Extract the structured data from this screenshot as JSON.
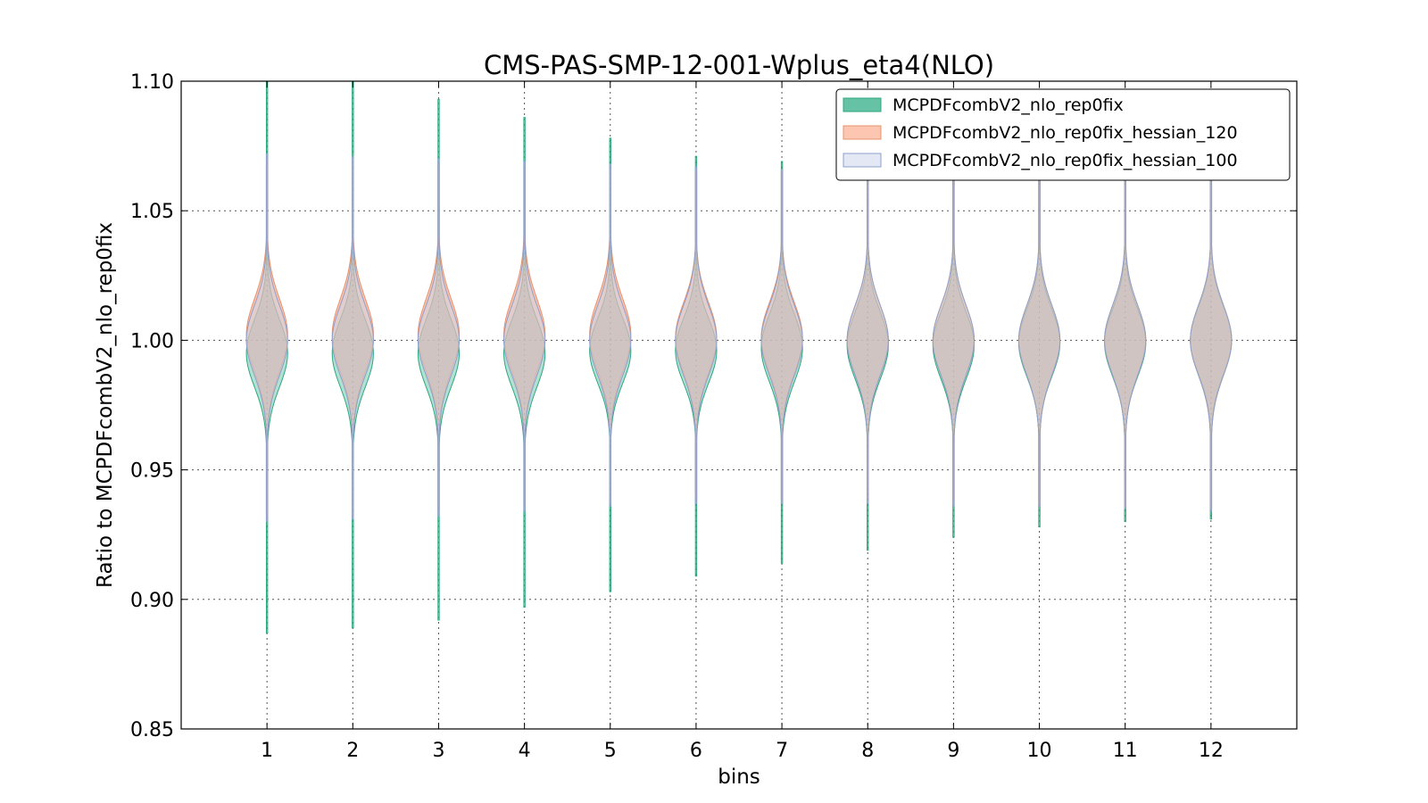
{
  "chart_data": {
    "type": "violin",
    "title": "CMS-PAS-SMP-12-001-Wplus_eta4(NLO)",
    "xlabel": "bins",
    "ylabel": "Ratio to MCPDFcombV2_nlo_rep0fix",
    "ylim": [
      0.85,
      1.1
    ],
    "xlim": [
      0,
      13.0
    ],
    "categories": [
      "1",
      "2",
      "3",
      "4",
      "5",
      "6",
      "7",
      "8",
      "9",
      "10",
      "11",
      "12"
    ],
    "yticks": [
      "0.85",
      "0.90",
      "0.95",
      "1.00",
      "1.05",
      "1.10"
    ],
    "grid": true,
    "legend_position": "top-right",
    "series": [
      {
        "name": "MCPDFcombV2_nlo_rep0fix",
        "fill": "#66c2a5",
        "stroke": "#2ca87f",
        "center": [
          0.995,
          0.995,
          0.995,
          0.995,
          0.996,
          0.996,
          0.997,
          0.998,
          0.998,
          0.999,
          0.999,
          1.0
        ],
        "sd": [
          0.013,
          0.013,
          0.013,
          0.013,
          0.0125,
          0.0125,
          0.013,
          0.013,
          0.013,
          0.013,
          0.013,
          0.013
        ],
        "min": [
          0.887,
          0.889,
          0.892,
          0.897,
          0.903,
          0.909,
          0.914,
          0.919,
          0.924,
          0.928,
          0.93,
          0.931
        ],
        "max": [
          1.1,
          1.1,
          1.093,
          1.086,
          1.078,
          1.071,
          1.069,
          1.067,
          1.066,
          1.065,
          1.063,
          1.062
        ]
      },
      {
        "name": "MCPDFcombV2_nlo_rep0fix_hessian_120",
        "fill": "#fc8d62",
        "stroke": "#e8916e",
        "center": [
          1.002,
          1.002,
          1.002,
          1.002,
          1.002,
          1.001,
          1.001,
          1.0,
          1.0,
          1.0,
          1.0,
          1.0
        ],
        "sd": [
          0.014,
          0.014,
          0.014,
          0.014,
          0.014,
          0.0135,
          0.0135,
          0.0135,
          0.0135,
          0.0135,
          0.0135,
          0.0135
        ],
        "min": [
          0.931,
          0.932,
          0.934,
          0.936,
          0.938,
          0.939,
          0.939,
          0.939,
          0.938,
          0.937,
          0.936,
          0.935
        ],
        "max": [
          1.07,
          1.069,
          1.068,
          1.067,
          1.066,
          1.065,
          1.065,
          1.064,
          1.064,
          1.063,
          1.063,
          1.062
        ]
      },
      {
        "name": "MCPDFcombV2_nlo_rep0fix_hessian_100",
        "fill": "#c8d2ea",
        "stroke": "#8da0cb",
        "center": [
          1.0,
          1.0,
          1.0,
          1.0,
          1.0,
          1.0,
          1.0,
          1.0,
          1.0,
          1.0,
          1.0,
          1.0
        ],
        "sd": [
          0.0135,
          0.0135,
          0.0135,
          0.0135,
          0.0135,
          0.0135,
          0.0135,
          0.0135,
          0.0135,
          0.0135,
          0.0135,
          0.0135
        ],
        "min": [
          0.93,
          0.931,
          0.932,
          0.934,
          0.936,
          0.937,
          0.937,
          0.937,
          0.936,
          0.936,
          0.935,
          0.934
        ],
        "max": [
          1.072,
          1.071,
          1.07,
          1.069,
          1.068,
          1.067,
          1.066,
          1.066,
          1.066,
          1.065,
          1.065,
          1.064
        ]
      }
    ]
  }
}
